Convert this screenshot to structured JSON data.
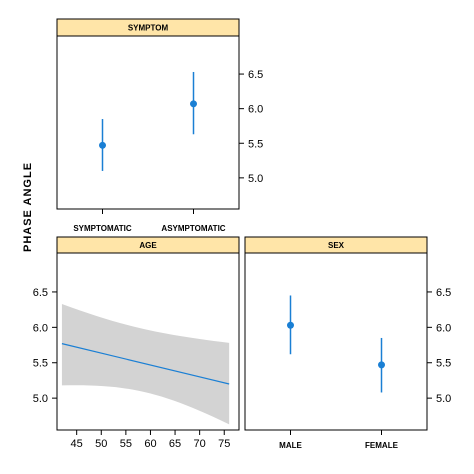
{
  "ylabel": "PHASE ANGLE",
  "colors": {
    "mark": "#1a7fd4",
    "strip": "#ffe5a8",
    "band": "#d3d3d3",
    "frame": "#000000"
  },
  "chart_data": [
    {
      "type": "scatter",
      "strip": "SYMPTOM",
      "categories": [
        "SYMPTOMATIC",
        "ASYMPTOMATIC"
      ],
      "series": [
        {
          "values": [
            5.47,
            6.07
          ],
          "lower": [
            5.1,
            5.63
          ],
          "upper": [
            5.85,
            6.53
          ]
        }
      ],
      "y_axis_side": "right",
      "yticks": [
        "5.0",
        "5.5",
        "6.0",
        "6.5"
      ],
      "ylim": [
        4.55,
        7.05
      ]
    },
    {
      "type": "line",
      "strip": "AGE",
      "x": [
        42,
        76
      ],
      "fit": [
        5.77,
        5.2
      ],
      "band_x": [
        42,
        76
      ],
      "band_lower": [
        5.18,
        4.63
      ],
      "band_upper": [
        6.33,
        5.78
      ],
      "xticks": [
        "45",
        "50",
        "55",
        "60",
        "65",
        "70",
        "75"
      ],
      "xlim": [
        41,
        78
      ],
      "y_axis_side": "left",
      "yticks": [
        "5.0",
        "5.5",
        "6.0",
        "6.5"
      ],
      "ylim": [
        4.55,
        7.05
      ]
    },
    {
      "type": "scatter",
      "strip": "SEX",
      "categories": [
        "MALE",
        "FEMALE"
      ],
      "series": [
        {
          "values": [
            6.03,
            5.47
          ],
          "lower": [
            5.62,
            5.08
          ],
          "upper": [
            6.45,
            5.85
          ]
        }
      ],
      "y_axis_side": "right",
      "yticks": [
        "5.0",
        "5.5",
        "6.0",
        "6.5"
      ],
      "ylim": [
        4.55,
        7.05
      ]
    }
  ]
}
